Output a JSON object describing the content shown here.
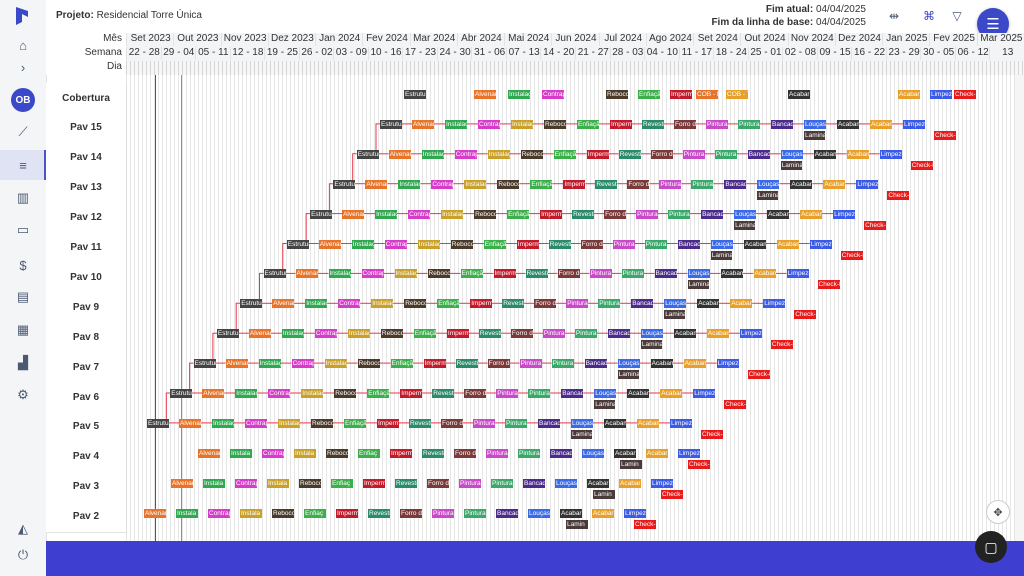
{
  "project": {
    "label": "Projeto:",
    "name": "Residencial Torre Única"
  },
  "dates": {
    "current_label": "Fim atual:",
    "current": "04/04/2025",
    "baseline_label": "Fim da linha de base:",
    "baseline": "04/04/2025"
  },
  "header": {
    "mes_label": "Mês",
    "semana_label": "Semana",
    "dia_label": "Dia",
    "months": [
      "Set 2023",
      "Out 2023",
      "Nov 2023",
      "Dez 2023",
      "Jan 2024",
      "Fev 2024",
      "Mar 2024",
      "Abr 2024",
      "Mai 2024",
      "Jun 2024",
      "Jul 2024",
      "Ago 2024",
      "Set 2024",
      "Out 2024",
      "Nov 2024",
      "Dez 2024",
      "Jan 2025",
      "Fev 2025",
      "Mar 2025"
    ],
    "weeks": [
      "22 - 28",
      "29 - 04",
      "05 - 11",
      "12 - 18",
      "19 - 25",
      "26 - 02",
      "03 - 09",
      "10 - 16",
      "17 - 23",
      "24 - 30",
      "31 - 06",
      "07 - 13",
      "14 - 20",
      "21 - 27",
      "28 - 03",
      "04 - 10",
      "11 - 17",
      "18 - 24",
      "25 - 01",
      "02 - 08",
      "09 - 15",
      "16 - 22",
      "23 - 29",
      "30 - 05",
      "06 - 12",
      "13"
    ]
  },
  "rows": [
    "Cobertura",
    "Pav 15",
    "Pav 14",
    "Pav 13",
    "Pav 12",
    "Pav 11",
    "Pav 10",
    "Pav 9",
    "Pav 8",
    "Pav 7",
    "Pav 6",
    "Pav 5",
    "Pav 4",
    "Pav 3",
    "Pav 2"
  ],
  "tasks": [
    {
      "name": "Estrutura",
      "color": "#444444"
    },
    {
      "name": "Alvenaria",
      "color": "#e8742a"
    },
    {
      "name": "Instalações",
      "color": "#2fa84f"
    },
    {
      "name": "Contrapiso",
      "color": "#d63cc9"
    },
    {
      "name": "Instalações",
      "color": "#c9a12a"
    },
    {
      "name": "Reboco",
      "color": "#4a3a2a"
    },
    {
      "name": "Enfiação",
      "color": "#3bb04a"
    },
    {
      "name": "Impermeab.",
      "color": "#c21a2a"
    },
    {
      "name": "Revestimento",
      "color": "#2a8a6a"
    },
    {
      "name": "Forro de gesso",
      "color": "#7a3a3a"
    },
    {
      "name": "Pintura",
      "color": "#c84ac8"
    },
    {
      "name": "Pintura",
      "color": "#3aa86a"
    },
    {
      "name": "Bancadas",
      "color": "#4a2a8a"
    },
    {
      "name": "Louças",
      "color": "#3a6ae8"
    },
    {
      "name": "Laminado",
      "color": "#4a3a3a"
    },
    {
      "name": "Acabamento",
      "color": "#333333"
    },
    {
      "name": "Acabamento",
      "color": "#e8a02a"
    },
    {
      "name": "Limpeza",
      "color": "#3a5ae8"
    },
    {
      "name": "Check-list",
      "color": "#e81a1a"
    }
  ],
  "cobertura_tasks": [
    "Estrutura",
    "Alvenaria",
    "Instalaç",
    "Contrapi",
    "Reboco",
    "Enfiação",
    "Imperm",
    "COB - Estr",
    "COB - Telh",
    "Acabar",
    "Acabar",
    "Limpez",
    "Check-"
  ],
  "pav4_tasks": [
    "Alvenari",
    "Instala",
    "Contrap",
    "Instala",
    "Reboco",
    "Enfiaç",
    "Imperm",
    "Revesti",
    "Forro d",
    "Pintura",
    "Pintura",
    "Bancad",
    "Louças",
    "Acabar",
    "Acabar",
    "Limpez",
    "Check-l",
    "Lamin"
  ],
  "icons": {
    "home": "home-icon",
    "expand": "chevron-right-icon",
    "chart": "chart-line-icon",
    "list": "list-icon",
    "bars": "bar-chart-icon",
    "wallet": "wallet-icon",
    "money": "money-icon",
    "doc": "document-icon",
    "calendar": "calendar-icon",
    "building": "building-icon",
    "gear": "gear-icon",
    "bell": "bell-icon",
    "power": "power-icon"
  },
  "avatar": "OB",
  "accent": "#3b48c8"
}
